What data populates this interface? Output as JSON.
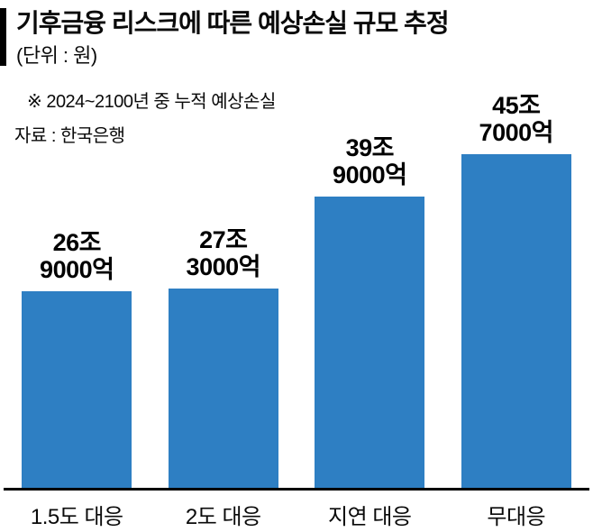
{
  "header": {
    "title": "기후금융 리스크에 따른 예상손실 규모 추정",
    "unit": "(단위 : 원)"
  },
  "notes": {
    "note": "※ 2024~2100년 중 누적 예상손실",
    "source": "자료 : 한국은행"
  },
  "chart_data": {
    "type": "bar",
    "title": "기후금융 리스크에 따른 예상손실 규모 추정",
    "subtitle": "(단위 : 원)",
    "note": "※ 2024~2100년 중 누적 예상손실",
    "source": "자료 : 한국은행",
    "categories": [
      "1.5도 대응",
      "2도 대응",
      "지연 대응",
      "무대응"
    ],
    "values": [
      26.9,
      27.3,
      39.9,
      45.7
    ],
    "value_unit": "조 원",
    "value_labels": [
      [
        "26조",
        "9000억"
      ],
      [
        "27조",
        "3000억"
      ],
      [
        "39조",
        "9000억"
      ],
      [
        "45조",
        "7000억"
      ]
    ],
    "xlabel": "",
    "ylabel": "",
    "ylim": [
      0,
      48
    ],
    "grid": false,
    "legend": "none",
    "bar_color": "#2e7fc3"
  }
}
